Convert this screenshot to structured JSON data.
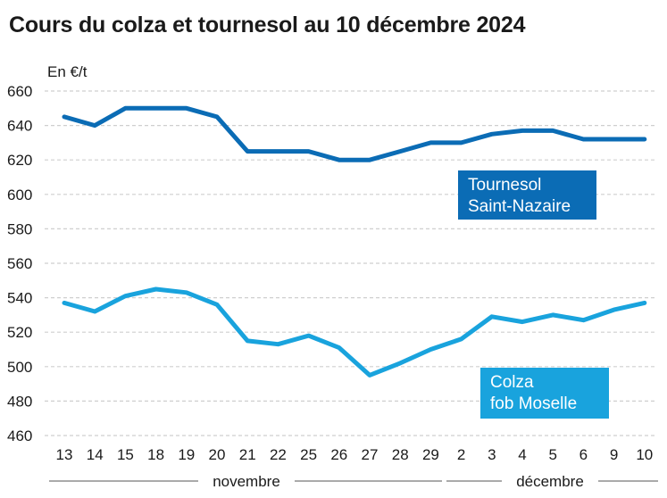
{
  "chart_data": {
    "type": "line",
    "title": "Cours du colza et tournesol au 10 décembre 2024",
    "ylabel": "En €/t",
    "xlabel": "",
    "ylim": [
      460,
      660
    ],
    "yticks": [
      460,
      480,
      500,
      520,
      540,
      560,
      580,
      600,
      620,
      640,
      660
    ],
    "grid": true,
    "categories": [
      "13",
      "14",
      "15",
      "18",
      "19",
      "20",
      "21",
      "22",
      "25",
      "26",
      "27",
      "28",
      "29",
      "2",
      "3",
      "4",
      "5",
      "6",
      "9",
      "10"
    ],
    "month_groups": [
      {
        "label": "novembre",
        "from": 0,
        "to": 12
      },
      {
        "label": "décembre",
        "from": 13,
        "to": 19
      }
    ],
    "series": [
      {
        "name": "Tournesol Saint-Nazaire",
        "label_lines": [
          "Tournesol",
          "Saint-Nazaire"
        ],
        "color": "#0b6cb5",
        "values": [
          645,
          640,
          650,
          650,
          650,
          645,
          625,
          625,
          625,
          620,
          620,
          625,
          630,
          630,
          635,
          637,
          637,
          632,
          632,
          632
        ]
      },
      {
        "name": "Colza fob Moselle",
        "label_lines": [
          "Colza",
          "fob Moselle"
        ],
        "color": "#19a3dd",
        "values": [
          537,
          532,
          541,
          545,
          543,
          536,
          515,
          513,
          518,
          511,
          495,
          502,
          510,
          516,
          529,
          526,
          530,
          527,
          533,
          537
        ]
      }
    ]
  }
}
